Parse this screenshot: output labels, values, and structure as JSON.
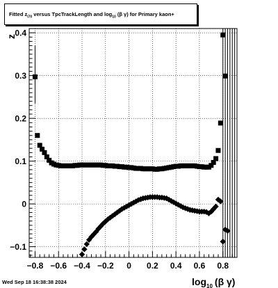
{
  "title": {
    "prefix": "Fitted  z",
    "z_sub": "I70",
    "middle": "  versus TpcTrackLength and log",
    "log_sub": "10",
    "suffix": "(β  γ) for Primary kaon+"
  },
  "timestamp": "Wed Sep 18 16:38:38 2024",
  "chart_data": {
    "type": "scatter",
    "xlabel_main": "log",
    "xlabel_sub": "10",
    "xlabel_tail": "(β γ)",
    "ylabel": "z",
    "xlim": [
      -0.85,
      0.92
    ],
    "ylim": [
      -0.125,
      0.41
    ],
    "grid": true,
    "x_ticks": [
      -0.8,
      -0.6,
      -0.4,
      -0.2,
      0,
      0.2,
      0.4,
      0.6,
      0.8
    ],
    "x_tick_labels": [
      "−0.8",
      "−0.6",
      "−0.4",
      "−0.2",
      "0",
      "0.2",
      "0.4",
      "0.6",
      "0.8"
    ],
    "y_ticks": [
      -0.1,
      0,
      0.1,
      0.2,
      0.3,
      0.4
    ],
    "y_tick_labels": [
      "−0.1",
      "0",
      "0.1",
      "0.2",
      "0.3",
      "0.4"
    ],
    "series": [
      {
        "marker": "square",
        "color": "#000000",
        "points": [
          [
            -0.8,
            0.297
          ],
          [
            -0.78,
            0.16
          ],
          [
            -0.76,
            0.137
          ],
          [
            -0.74,
            0.128
          ],
          [
            -0.72,
            0.12
          ],
          [
            -0.7,
            0.11
          ],
          [
            -0.68,
            0.102
          ],
          [
            -0.66,
            0.096
          ],
          [
            -0.64,
            0.093
          ],
          [
            -0.62,
            0.091
          ],
          [
            -0.6,
            0.09
          ],
          [
            -0.58,
            0.089
          ],
          [
            -0.56,
            0.089
          ],
          [
            -0.54,
            0.089
          ],
          [
            -0.52,
            0.089
          ],
          [
            -0.5,
            0.089
          ],
          [
            -0.48,
            0.089
          ],
          [
            -0.46,
            0.09
          ],
          [
            -0.44,
            0.09
          ],
          [
            -0.42,
            0.091
          ],
          [
            -0.4,
            0.091
          ],
          [
            -0.38,
            0.091
          ],
          [
            -0.36,
            0.091
          ],
          [
            -0.34,
            0.091
          ],
          [
            -0.32,
            0.091
          ],
          [
            -0.3,
            0.091
          ],
          [
            -0.28,
            0.091
          ],
          [
            -0.26,
            0.091
          ],
          [
            -0.24,
            0.091
          ],
          [
            -0.22,
            0.09
          ],
          [
            -0.2,
            0.09
          ],
          [
            -0.18,
            0.089
          ],
          [
            -0.16,
            0.089
          ],
          [
            -0.14,
            0.089
          ],
          [
            -0.12,
            0.088
          ],
          [
            -0.1,
            0.088
          ],
          [
            -0.08,
            0.087
          ],
          [
            -0.06,
            0.087
          ],
          [
            -0.04,
            0.086
          ],
          [
            -0.02,
            0.086
          ],
          [
            0.0,
            0.085
          ],
          [
            0.02,
            0.085
          ],
          [
            0.04,
            0.084
          ],
          [
            0.06,
            0.083
          ],
          [
            0.08,
            0.083
          ],
          [
            0.1,
            0.083
          ],
          [
            0.12,
            0.082
          ],
          [
            0.14,
            0.082
          ],
          [
            0.16,
            0.082
          ],
          [
            0.18,
            0.082
          ],
          [
            0.2,
            0.082
          ],
          [
            0.22,
            0.081
          ],
          [
            0.24,
            0.081
          ],
          [
            0.26,
            0.082
          ],
          [
            0.28,
            0.082
          ],
          [
            0.3,
            0.083
          ],
          [
            0.32,
            0.084
          ],
          [
            0.34,
            0.085
          ],
          [
            0.36,
            0.086
          ],
          [
            0.38,
            0.087
          ],
          [
            0.4,
            0.088
          ],
          [
            0.42,
            0.088
          ],
          [
            0.44,
            0.089
          ],
          [
            0.46,
            0.089
          ],
          [
            0.48,
            0.089
          ],
          [
            0.5,
            0.089
          ],
          [
            0.52,
            0.089
          ],
          [
            0.54,
            0.089
          ],
          [
            0.56,
            0.089
          ],
          [
            0.58,
            0.088
          ],
          [
            0.6,
            0.087
          ],
          [
            0.62,
            0.087
          ],
          [
            0.64,
            0.086
          ],
          [
            0.66,
            0.086
          ],
          [
            0.68,
            0.086
          ],
          [
            0.7,
            0.09
          ],
          [
            0.72,
            0.097
          ],
          [
            0.74,
            0.106
          ],
          [
            0.76,
            0.125
          ],
          [
            0.78,
            0.189
          ],
          [
            0.8,
            0.395
          ],
          [
            0.82,
            0.299
          ]
        ]
      },
      {
        "marker": "diamond",
        "color": "#000000",
        "points": [
          [
            -0.4,
            -0.118
          ],
          [
            -0.38,
            -0.106
          ],
          [
            -0.36,
            -0.094
          ],
          [
            -0.34,
            -0.084
          ],
          [
            -0.32,
            -0.077
          ],
          [
            -0.3,
            -0.071
          ],
          [
            -0.28,
            -0.065
          ],
          [
            -0.26,
            -0.058
          ],
          [
            -0.24,
            -0.052
          ],
          [
            -0.22,
            -0.046
          ],
          [
            -0.2,
            -0.041
          ],
          [
            -0.18,
            -0.036
          ],
          [
            -0.16,
            -0.032
          ],
          [
            -0.14,
            -0.028
          ],
          [
            -0.12,
            -0.024
          ],
          [
            -0.1,
            -0.02
          ],
          [
            -0.08,
            -0.016
          ],
          [
            -0.06,
            -0.012
          ],
          [
            -0.04,
            -0.009
          ],
          [
            -0.02,
            -0.006
          ],
          [
            0.0,
            -0.003
          ],
          [
            0.02,
            0.0
          ],
          [
            0.04,
            0.003
          ],
          [
            0.06,
            0.006
          ],
          [
            0.08,
            0.009
          ],
          [
            0.1,
            0.011
          ],
          [
            0.12,
            0.013
          ],
          [
            0.14,
            0.014
          ],
          [
            0.16,
            0.015
          ],
          [
            0.18,
            0.016
          ],
          [
            0.2,
            0.016
          ],
          [
            0.22,
            0.016
          ],
          [
            0.24,
            0.016
          ],
          [
            0.26,
            0.015
          ],
          [
            0.28,
            0.015
          ],
          [
            0.3,
            0.014
          ],
          [
            0.32,
            0.013
          ],
          [
            0.34,
            0.01
          ],
          [
            0.36,
            0.007
          ],
          [
            0.38,
            0.004
          ],
          [
            0.4,
            0.001
          ],
          [
            0.42,
            -0.002
          ],
          [
            0.44,
            -0.005
          ],
          [
            0.46,
            -0.008
          ],
          [
            0.48,
            -0.01
          ],
          [
            0.5,
            -0.012
          ],
          [
            0.52,
            -0.014
          ],
          [
            0.54,
            -0.015
          ],
          [
            0.56,
            -0.016
          ],
          [
            0.58,
            -0.017
          ],
          [
            0.6,
            -0.018
          ],
          [
            0.62,
            -0.018
          ],
          [
            0.64,
            -0.018
          ],
          [
            0.66,
            -0.019
          ],
          [
            0.68,
            -0.022
          ],
          [
            0.7,
            -0.018
          ],
          [
            0.72,
            -0.012
          ],
          [
            0.74,
            -0.006
          ],
          [
            0.76,
            0.01
          ],
          [
            0.78,
            0.006
          ],
          [
            0.8,
            -0.088
          ],
          [
            0.82,
            -0.06
          ],
          [
            0.84,
            -0.063
          ]
        ]
      }
    ]
  }
}
